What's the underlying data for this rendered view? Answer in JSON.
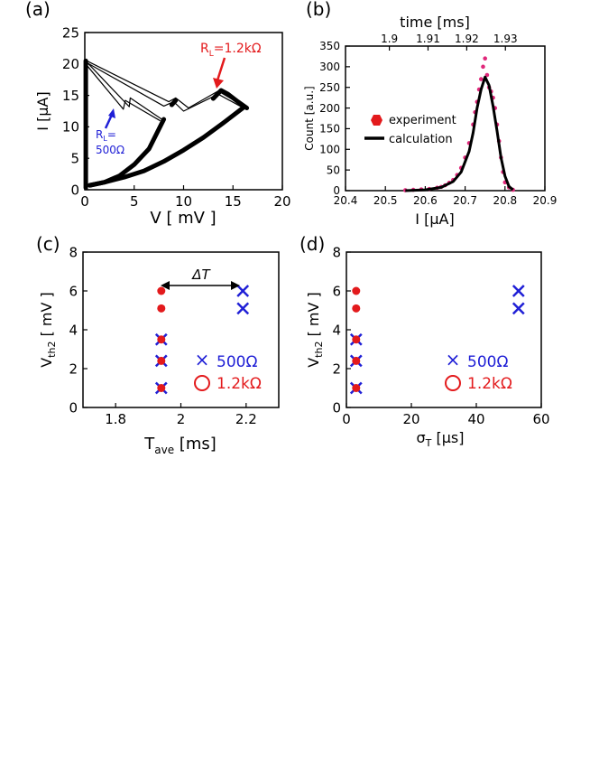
{
  "colors": {
    "red": "#e31a1c",
    "blue": "#1f1fd6",
    "pink": "#e0287a",
    "black": "#000000"
  },
  "chart_data": [
    {
      "id": "a",
      "panel_label": "(a)",
      "type": "line",
      "xlabel": "V [ mV ]",
      "ylabel": "I [μA]",
      "xlim": [
        0,
        20
      ],
      "ylim": [
        0,
        25
      ],
      "xticks": [
        "0",
        "5",
        "10",
        "15",
        "20"
      ],
      "yticks": [
        "0",
        "5",
        "10",
        "15",
        "20",
        "25"
      ],
      "annotations": {
        "rl_red": "R",
        "rl_red_sub": "L",
        "rl_red_val": "=1.2kΩ",
        "rl_blue": "R",
        "rl_blue_sub": "L",
        "rl_blue_eq": "=",
        "rl_blue_val": "500Ω"
      },
      "series": [
        {
          "name": "thick-lower",
          "x": [
            0.5,
            2,
            4,
            6,
            8,
            10,
            12,
            14,
            16
          ],
          "y": [
            0.7,
            1.2,
            2.0,
            3.0,
            4.5,
            6.3,
            8.3,
            10.6,
            13.0
          ]
        },
        {
          "name": "thick-500",
          "x": [
            0.5,
            2,
            3.5,
            5,
            6.5,
            8
          ],
          "y": [
            0.7,
            1.2,
            2.2,
            4.0,
            6.5,
            11.2
          ]
        },
        {
          "name": "thick-vertical",
          "x": [
            0.1,
            0.1
          ],
          "y": [
            0.3,
            20.5
          ]
        },
        {
          "name": "thick-1.2k-peak",
          "x": [
            13.0,
            13.8,
            14.5,
            15.5,
            16.4
          ],
          "y": [
            14.5,
            15.8,
            15.2,
            14.0,
            13.0
          ]
        },
        {
          "name": "thick-small-bump",
          "x": [
            8.8,
            9.2
          ],
          "y": [
            13.5,
            14.2
          ]
        },
        {
          "name": "thin-upper-1",
          "x": [
            0.2,
            8.5,
            9.2,
            10.5,
            13.5,
            16.4
          ],
          "y": [
            20.5,
            14.0,
            14.6,
            13.0,
            15.7,
            13.0
          ]
        },
        {
          "name": "thin-upper-2",
          "x": [
            0.2,
            8.0,
            9.0,
            10.0,
            13.5,
            16.3
          ],
          "y": [
            20.2,
            13.3,
            14.0,
            12.5,
            15.2,
            12.8
          ]
        },
        {
          "name": "thin-500-1",
          "x": [
            0.2,
            4.5,
            4.6,
            7.8
          ],
          "y": [
            20.3,
            13.2,
            14.6,
            11.2
          ]
        },
        {
          "name": "thin-500-2",
          "x": [
            0.2,
            3.9,
            4.1,
            7.6
          ],
          "y": [
            19.8,
            12.8,
            14.2,
            11.0
          ]
        }
      ]
    },
    {
      "id": "b",
      "panel_label": "(b)",
      "type": "scatter",
      "top_axis_label": "time [ms]",
      "top_ticks": [
        "1.9",
        "1.91",
        "1.92",
        "1.93"
      ],
      "top_tick_x": [
        20.51,
        20.607,
        20.704,
        20.801
      ],
      "xlabel": "I [μA]",
      "ylabel": "Count [a.u.]",
      "xlim": [
        20.4,
        20.9
      ],
      "ylim": [
        0,
        350
      ],
      "xticks": [
        "20.4",
        "20.5",
        "20.6",
        "20.7",
        "20.8",
        "20.9"
      ],
      "yticks": [
        "0",
        "50",
        "100",
        "150",
        "200",
        "250",
        "300",
        "350"
      ],
      "legend": {
        "experiment": "experiment",
        "calculation": "calculation",
        "position": "left"
      },
      "series": [
        {
          "name": "experiment",
          "x": [
            20.55,
            20.57,
            20.59,
            20.61,
            20.63,
            20.64,
            20.65,
            20.66,
            20.67,
            20.68,
            20.69,
            20.7,
            20.71,
            20.72,
            20.725,
            20.73,
            20.735,
            20.74,
            20.745,
            20.75,
            20.755,
            20.76,
            20.765,
            20.77,
            20.775,
            20.78,
            20.785,
            20.79,
            20.795,
            20.8,
            20.81,
            20.82
          ],
          "y": [
            1,
            2,
            3,
            4,
            7,
            9,
            13,
            19,
            26,
            38,
            55,
            80,
            115,
            160,
            190,
            215,
            245,
            270,
            300,
            320,
            280,
            250,
            240,
            225,
            200,
            160,
            120,
            80,
            45,
            20,
            8,
            2
          ]
        },
        {
          "name": "calculation",
          "x": [
            20.55,
            20.6,
            20.64,
            20.67,
            20.69,
            20.71,
            20.72,
            20.73,
            20.74,
            20.75,
            20.76,
            20.77,
            20.78,
            20.79,
            20.8,
            20.81,
            20.82
          ],
          "y": [
            0,
            2,
            8,
            22,
            45,
            95,
            140,
            200,
            245,
            275,
            255,
            205,
            145,
            80,
            35,
            10,
            2
          ]
        }
      ]
    },
    {
      "id": "c",
      "panel_label": "(c)",
      "type": "scatter",
      "xlabel": "T",
      "xlabel_sub": "ave",
      "xlabel_unit": " [ms]",
      "ylabel": "V",
      "ylabel_sub": "th2",
      "ylabel_unit": " [ mV ]",
      "xlim": [
        1.7,
        2.3
      ],
      "ylim": [
        0,
        8
      ],
      "xticks": [
        "1.8",
        "2",
        "2.2"
      ],
      "yticks": [
        "0",
        "2",
        "4",
        "6",
        "8"
      ],
      "annotation": "ΔT",
      "legend": {
        "x_series": "500Ω",
        "o_series": "1.2kΩ",
        "position": "lower-right"
      },
      "series": [
        {
          "name": "500Ω",
          "marker": "x",
          "x": [
            1.94,
            1.94,
            1.94,
            2.19,
            2.19
          ],
          "y": [
            1.0,
            2.4,
            3.5,
            5.1,
            6.0
          ]
        },
        {
          "name": "1.2kΩ",
          "marker": "o",
          "x": [
            1.94,
            1.94,
            1.94,
            1.94,
            1.94
          ],
          "y": [
            1.0,
            2.4,
            3.5,
            5.1,
            6.0
          ]
        }
      ]
    },
    {
      "id": "d",
      "panel_label": "(d)",
      "type": "scatter",
      "xlabel": "σ",
      "xlabel_sub": "T",
      "xlabel_unit": " [μs]",
      "ylabel": "V",
      "ylabel_sub": "th2",
      "ylabel_unit": " [ mV ]",
      "xlim": [
        0,
        60
      ],
      "ylim": [
        0,
        8
      ],
      "xticks": [
        "0",
        "20",
        "40",
        "60"
      ],
      "yticks": [
        "0",
        "2",
        "4",
        "6",
        "8"
      ],
      "legend": {
        "x_series": "500Ω",
        "o_series": "1.2kΩ",
        "position": "lower-right"
      },
      "series": [
        {
          "name": "500Ω",
          "marker": "x",
          "x": [
            3,
            3,
            3,
            53,
            53
          ],
          "y": [
            1.0,
            2.4,
            3.5,
            5.1,
            6.0
          ]
        },
        {
          "name": "1.2kΩ",
          "marker": "o",
          "x": [
            3,
            3,
            3,
            3,
            3
          ],
          "y": [
            1.0,
            2.4,
            3.5,
            5.1,
            6.0
          ]
        }
      ]
    }
  ]
}
